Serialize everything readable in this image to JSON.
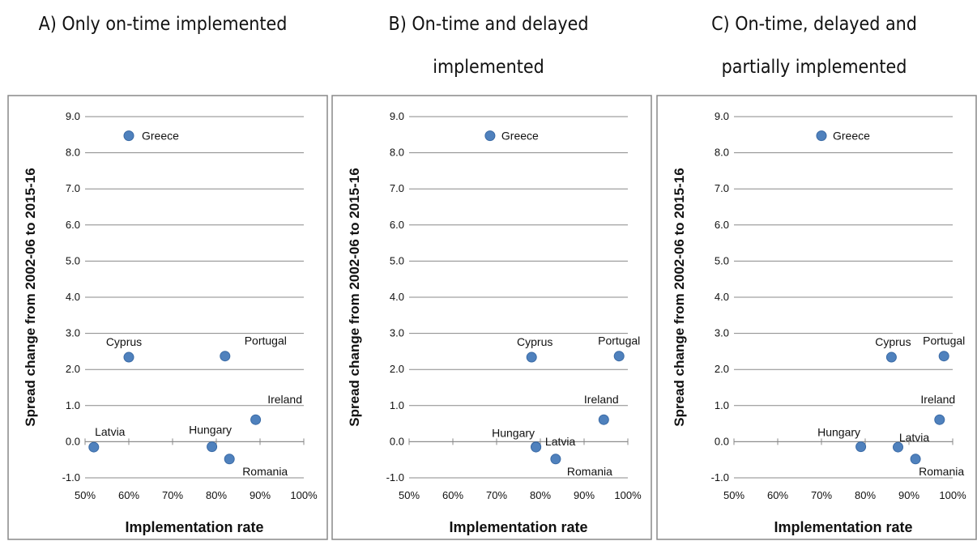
{
  "chart_data": [
    {
      "type": "scatter",
      "title": "A) Only on-time implemented",
      "xlabel": "Implementation rate",
      "ylabel": "Spread change from 2002-06 to 2015-16",
      "xlim": [
        0.5,
        1.0
      ],
      "ylim": [
        -1.0,
        9.0
      ],
      "x_ticks": [
        "50%",
        "60%",
        "70%",
        "80%",
        "90%",
        "100%"
      ],
      "y_ticks": [
        "9.0",
        "8.0",
        "7.0",
        "6.0",
        "5.0",
        "4.0",
        "3.0",
        "2.0",
        "1.0",
        "0.0",
        "-1.0"
      ],
      "grid": "horizontal",
      "points": [
        {
          "label": "Greece",
          "x": 0.6,
          "y": 8.47
        },
        {
          "label": "Cyprus",
          "x": 0.6,
          "y": 2.34
        },
        {
          "label": "Portugal",
          "x": 0.82,
          "y": 2.37
        },
        {
          "label": "Ireland",
          "x": 0.89,
          "y": 0.61
        },
        {
          "label": "Latvia",
          "x": 0.52,
          "y": -0.15
        },
        {
          "label": "Hungary",
          "x": 0.79,
          "y": -0.14
        },
        {
          "label": "Romania",
          "x": 0.83,
          "y": -0.48
        }
      ]
    },
    {
      "type": "scatter",
      "title": "B) On-time and delayed implemented",
      "xlabel": "Implementation rate",
      "ylabel": "Spread change from 2002-06 to 2015-16",
      "xlim": [
        0.5,
        1.0
      ],
      "ylim": [
        -1.0,
        9.0
      ],
      "x_ticks": [
        "50%",
        "60%",
        "70%",
        "80%",
        "90%",
        "100%"
      ],
      "y_ticks": [
        "9.0",
        "8.0",
        "7.0",
        "6.0",
        "5.0",
        "4.0",
        "3.0",
        "2.0",
        "1.0",
        "0.0",
        "-1.0"
      ],
      "grid": "horizontal",
      "points": [
        {
          "label": "Greece",
          "x": 0.685,
          "y": 8.47
        },
        {
          "label": "Cyprus",
          "x": 0.78,
          "y": 2.34
        },
        {
          "label": "Portugal",
          "x": 0.98,
          "y": 2.37
        },
        {
          "label": "Ireland",
          "x": 0.945,
          "y": 0.61
        },
        {
          "label": "Hungary",
          "x": 0.79,
          "y": -0.14
        },
        {
          "label": "Latvia",
          "x": 0.79,
          "y": -0.15
        },
        {
          "label": "Romania",
          "x": 0.835,
          "y": -0.48
        }
      ]
    },
    {
      "type": "scatter",
      "title": "C) On-time, delayed and partially implemented",
      "xlabel": "Implementation rate",
      "ylabel": "Spread change from 2002-06 to 2015-16",
      "xlim": [
        0.5,
        1.0
      ],
      "ylim": [
        -1.0,
        9.0
      ],
      "x_ticks": [
        "50%",
        "60%",
        "70%",
        "80%",
        "90%",
        "100%"
      ],
      "y_ticks": [
        "9.0",
        "8.0",
        "7.0",
        "6.0",
        "5.0",
        "4.0",
        "3.0",
        "2.0",
        "1.0",
        "0.0",
        "-1.0"
      ],
      "grid": "horizontal",
      "points": [
        {
          "label": "Greece",
          "x": 0.7,
          "y": 8.47
        },
        {
          "label": "Cyprus",
          "x": 0.86,
          "y": 2.34
        },
        {
          "label": "Portugal",
          "x": 0.98,
          "y": 2.37
        },
        {
          "label": "Ireland",
          "x": 0.97,
          "y": 0.61
        },
        {
          "label": "Hungary",
          "x": 0.79,
          "y": -0.14
        },
        {
          "label": "Latvia",
          "x": 0.875,
          "y": -0.15
        },
        {
          "label": "Romania",
          "x": 0.915,
          "y": -0.48
        }
      ]
    }
  ],
  "panel_titles": {
    "a": "A) Only on-time implemented",
    "b_line1": "B) On-time and delayed",
    "b_line2": "implemented",
    "c_line1": "C) On-time, delayed and",
    "c_line2": "partially implemented"
  },
  "colors": {
    "marker": "#4f81bd",
    "grid": "#888888"
  }
}
